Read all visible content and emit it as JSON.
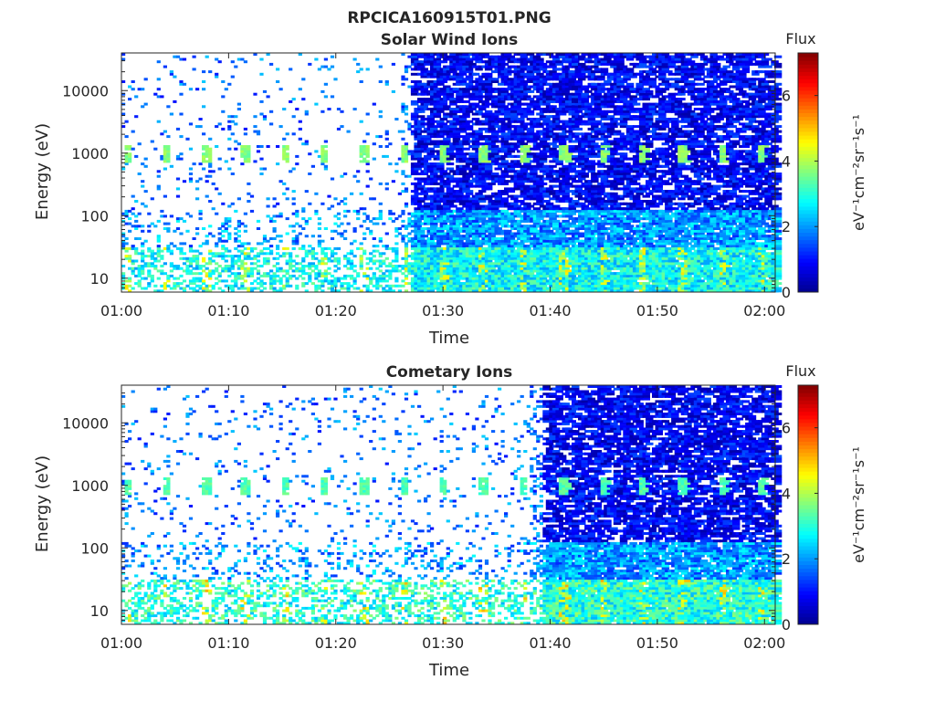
{
  "figure_title": "RPCICA160915T01.PNG",
  "colormap": [
    "#00008f",
    "#0000ff",
    "#0080ff",
    "#00ffff",
    "#80ff80",
    "#ffff00",
    "#ff8000",
    "#ff0000",
    "#800000"
  ],
  "chart_data": [
    {
      "type": "heatmap",
      "title": "Solar Wind Ions",
      "xlabel": "Time",
      "ylabel": "Energy (eV)",
      "x_ticks": [
        "01:00",
        "01:10",
        "01:20",
        "01:30",
        "01:40",
        "01:50",
        "02:00"
      ],
      "x_range_minutes": [
        0,
        61
      ],
      "y_scale": "log",
      "y_ticks": [
        10,
        100,
        1000,
        10000
      ],
      "y_tick_labels": [
        "10",
        "100",
        "1000",
        "10000"
      ],
      "y_range": [
        6,
        40000
      ],
      "colorbar": {
        "label": "Flux",
        "unit": "eV⁻¹cm⁻²sr⁻¹s⁻¹",
        "ticks": [
          0,
          2,
          4,
          6
        ],
        "range": [
          0,
          7.3
        ]
      },
      "seed": 17,
      "sparse_until_min": 26,
      "dense_from_min": 27,
      "low_energy_band_flux": [
        2.0,
        4.8
      ],
      "periodic_1keV_flux": 3.4
    },
    {
      "type": "heatmap",
      "title": "Cometary Ions",
      "xlabel": "Time",
      "ylabel": "Energy (eV)",
      "x_ticks": [
        "01:00",
        "01:10",
        "01:20",
        "01:30",
        "01:40",
        "01:50",
        "02:00"
      ],
      "x_range_minutes": [
        0,
        61
      ],
      "y_scale": "log",
      "y_ticks": [
        10,
        100,
        1000,
        10000
      ],
      "y_tick_labels": [
        "10",
        "100",
        "1000",
        "10000"
      ],
      "y_range": [
        6,
        40000
      ],
      "colorbar": {
        "label": "Flux",
        "unit": "eV⁻¹cm⁻²sr⁻¹s⁻¹",
        "ticks": [
          0,
          2,
          4,
          6
        ],
        "range": [
          0,
          7.3
        ]
      },
      "seed": 91,
      "sparse_until_min": 38,
      "dense_from_min": 39,
      "low_energy_band_flux": [
        2.2,
        5.2
      ],
      "periodic_1keV_flux": 3.0
    }
  ]
}
